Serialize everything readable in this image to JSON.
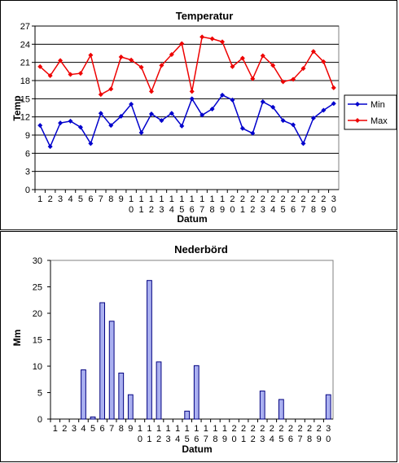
{
  "colors": {
    "min": "#0000cc",
    "max": "#ee0000",
    "bar_fill": "#aab0f0",
    "bar_stroke": "#000080",
    "grid": "#000000"
  },
  "chart_data": [
    {
      "type": "line",
      "title": "Temperatur",
      "xlabel": "Datum",
      "ylabel": "Temp",
      "ylim": [
        0,
        27
      ],
      "yticks": [
        0,
        3,
        6,
        9,
        12,
        15,
        18,
        21,
        24,
        27
      ],
      "grid": true,
      "legend": "right",
      "categories": [
        "1",
        "2",
        "3",
        "4",
        "5",
        "6",
        "7",
        "8",
        "9",
        "10",
        "11",
        "12",
        "13",
        "14",
        "15",
        "16",
        "17",
        "18",
        "19",
        "20",
        "21",
        "22",
        "23",
        "24",
        "25",
        "26",
        "27",
        "28",
        "29",
        "30"
      ],
      "series": [
        {
          "name": "Min",
          "color": "#0000cc",
          "values": [
            10.6,
            7.1,
            11.0,
            11.3,
            10.3,
            7.6,
            12.6,
            10.6,
            12.1,
            14.1,
            9.4,
            12.5,
            11.4,
            12.6,
            10.5,
            15.0,
            12.3,
            13.3,
            15.6,
            14.8,
            10.1,
            9.3,
            14.5,
            13.6,
            11.4,
            10.7,
            7.6,
            11.8,
            13.1,
            14.2
          ]
        },
        {
          "name": "Max",
          "color": "#ee0000",
          "values": [
            20.3,
            18.8,
            21.3,
            19.0,
            19.2,
            22.2,
            15.7,
            16.6,
            21.9,
            21.4,
            20.2,
            16.2,
            20.5,
            22.3,
            24.1,
            16.2,
            25.2,
            24.9,
            24.4,
            20.3,
            21.7,
            18.3,
            22.1,
            20.5,
            17.8,
            18.2,
            20.0,
            22.8,
            21.1,
            16.8
          ]
        }
      ]
    },
    {
      "type": "bar",
      "title": "Nederbörd",
      "xlabel": "Datum",
      "ylabel": "Mm",
      "ylim": [
        0,
        30
      ],
      "yticks": [
        0,
        5,
        10,
        15,
        20,
        25,
        30
      ],
      "grid": false,
      "categories": [
        "1",
        "2",
        "3",
        "4",
        "5",
        "6",
        "7",
        "8",
        "9",
        "10",
        "11",
        "12",
        "13",
        "14",
        "15",
        "16",
        "17",
        "18",
        "19",
        "20",
        "21",
        "22",
        "23",
        "24",
        "25",
        "26",
        "27",
        "28",
        "29",
        "30"
      ],
      "values": [
        0,
        0,
        0,
        9.3,
        0.4,
        22.0,
        18.5,
        8.7,
        4.6,
        0,
        26.2,
        10.8,
        0,
        0,
        1.5,
        10.1,
        0,
        0,
        0,
        0,
        0,
        0,
        5.3,
        0,
        3.7,
        0,
        0,
        0,
        0,
        4.6
      ]
    }
  ]
}
